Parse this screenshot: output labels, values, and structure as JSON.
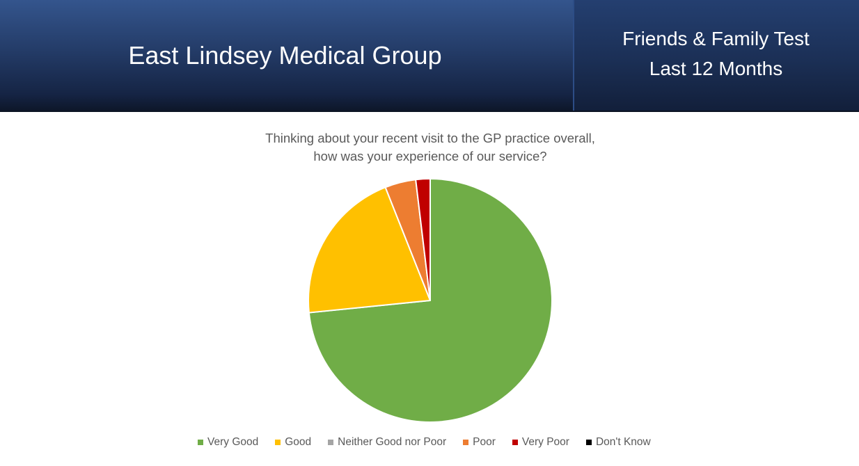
{
  "header": {
    "organisation": "East Lindsey Medical Group",
    "report_line1": "Friends & Family Test",
    "report_line2": "Last 12 Months"
  },
  "chart_data": {
    "type": "pie",
    "title": "Thinking about your recent visit to the GP practice overall, how was your experience of our service?",
    "title_line1": "Thinking about your recent visit to the GP practice overall,",
    "title_line2": "how was your experience of our service?",
    "categories": [
      "Very Good",
      "Good",
      "Neither Good nor Poor",
      "Poor",
      "Very Poor",
      "Don't Know"
    ],
    "values": [
      73.4,
      20.6,
      0,
      4.1,
      1.9,
      0
    ],
    "units": "% of responses (estimated from slice angles)",
    "colors": [
      "#70ad47",
      "#ffc000",
      "#a5a5a5",
      "#ed7d31",
      "#c00000",
      "#000000"
    ],
    "start_angle_deg": 0,
    "direction": "clockwise",
    "legend_position": "bottom"
  },
  "legend": {
    "items": [
      {
        "label": "Very Good",
        "color": "#70ad47"
      },
      {
        "label": "Good",
        "color": "#ffc000"
      },
      {
        "label": "Neither Good nor Poor",
        "color": "#a5a5a5"
      },
      {
        "label": "Poor",
        "color": "#ed7d31"
      },
      {
        "label": "Very Poor",
        "color": "#c00000"
      },
      {
        "label": "Don't Know",
        "color": "#000000"
      }
    ]
  }
}
